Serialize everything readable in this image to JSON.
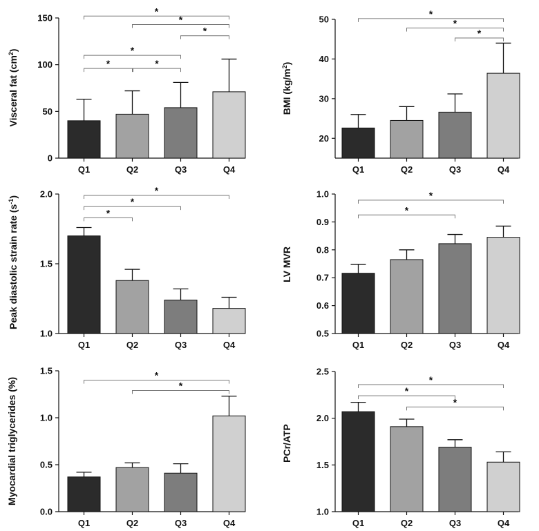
{
  "chart_data": [
    {
      "type": "bar",
      "categories": [
        "Q1",
        "Q2",
        "Q3",
        "Q4"
      ],
      "values": [
        40,
        47,
        54,
        71
      ],
      "errors": [
        23,
        25,
        27,
        35
      ],
      "ylabel_main": "Visceral fat (cm",
      "ylabel_sup": "2",
      "ylabel_end": ")",
      "ylim": [
        0,
        150
      ],
      "yticks": [
        "0",
        "50",
        "100",
        "150"
      ],
      "bar_colors": [
        "#2b2b2b",
        "#a2a2a2",
        "#7d7d7d",
        "#d0d0d0"
      ],
      "brackets": [
        {
          "from": 0,
          "to": 3,
          "y": 152,
          "label": "*"
        },
        {
          "from": 1,
          "to": 3,
          "y": 143,
          "label": "*"
        },
        {
          "from": 2,
          "to": 3,
          "y": 131,
          "label": "*"
        },
        {
          "from": 0,
          "to": 2,
          "y": 110,
          "label": "*"
        },
        {
          "from": 0,
          "to": 1,
          "y": 96,
          "label": "*"
        },
        {
          "from": 1,
          "to": 2,
          "y": 96,
          "label": "*"
        }
      ]
    },
    {
      "type": "bar",
      "categories": [
        "Q1",
        "Q2",
        "Q3",
        "Q4"
      ],
      "values": [
        22.6,
        24.5,
        26.6,
        36.4
      ],
      "errors": [
        3.4,
        3.5,
        4.6,
        7.6
      ],
      "ylabel_main": "BMI (kg/m",
      "ylabel_sup": "2",
      "ylabel_end": ")",
      "ylim": [
        15,
        50
      ],
      "yticks": [
        "20",
        "30",
        "40",
        "50"
      ],
      "bar_colors": [
        "#2b2b2b",
        "#a2a2a2",
        "#7d7d7d",
        "#d0d0d0"
      ],
      "brackets": [
        {
          "from": 0,
          "to": 3,
          "y": 50.2,
          "label": "*"
        },
        {
          "from": 1,
          "to": 3,
          "y": 47.8,
          "label": "*"
        },
        {
          "from": 2,
          "to": 3,
          "y": 45.3,
          "label": "*"
        }
      ]
    },
    {
      "type": "bar",
      "categories": [
        "Q1",
        "Q2",
        "Q3",
        "Q4"
      ],
      "values": [
        1.7,
        1.38,
        1.24,
        1.18
      ],
      "errors": [
        0.06,
        0.08,
        0.08,
        0.08
      ],
      "ylabel_main": "Peak diastolic strain rate (s",
      "ylabel_sup": "-1",
      "ylabel_end": ")",
      "ylim": [
        1.0,
        2.0
      ],
      "yticks": [
        "1.0",
        "1.5",
        "2.0"
      ],
      "bar_colors": [
        "#2b2b2b",
        "#a2a2a2",
        "#7d7d7d",
        "#d0d0d0"
      ],
      "brackets": [
        {
          "from": 0,
          "to": 3,
          "y": 1.99,
          "label": "*"
        },
        {
          "from": 0,
          "to": 2,
          "y": 1.91,
          "label": "*"
        },
        {
          "from": 0,
          "to": 1,
          "y": 1.83,
          "label": "*"
        }
      ]
    },
    {
      "type": "bar",
      "categories": [
        "Q1",
        "Q2",
        "Q3",
        "Q4"
      ],
      "values": [
        0.716,
        0.765,
        0.822,
        0.845
      ],
      "errors": [
        0.032,
        0.035,
        0.033,
        0.04
      ],
      "ylabel_main": "LV MVR",
      "ylabel_sup": "",
      "ylabel_end": "",
      "ylim": [
        0.5,
        1.0
      ],
      "yticks": [
        "0.5",
        "0.6",
        "0.7",
        "0.8",
        "0.9",
        "1.0"
      ],
      "bar_colors": [
        "#2b2b2b",
        "#a2a2a2",
        "#7d7d7d",
        "#d0d0d0"
      ],
      "brackets": [
        {
          "from": 0,
          "to": 3,
          "y": 0.978,
          "label": "*"
        },
        {
          "from": 0,
          "to": 2,
          "y": 0.925,
          "label": "*"
        }
      ]
    },
    {
      "type": "bar",
      "categories": [
        "Q1",
        "Q2",
        "Q3",
        "Q4"
      ],
      "values": [
        0.37,
        0.47,
        0.41,
        1.02
      ],
      "errors": [
        0.05,
        0.05,
        0.1,
        0.21
      ],
      "ylabel_main": "Myocardial triglycerides (%)",
      "ylabel_sup": "",
      "ylabel_end": "",
      "ylim": [
        0.0,
        1.5
      ],
      "yticks": [
        "0.0",
        "0.5",
        "1.0",
        "1.5"
      ],
      "bar_colors": [
        "#2b2b2b",
        "#a2a2a2",
        "#7d7d7d",
        "#d0d0d0"
      ],
      "brackets": [
        {
          "from": 0,
          "to": 3,
          "y": 1.4,
          "label": "*"
        },
        {
          "from": 1,
          "to": 3,
          "y": 1.29,
          "label": "*"
        }
      ]
    },
    {
      "type": "bar",
      "categories": [
        "Q1",
        "Q2",
        "Q3",
        "Q4"
      ],
      "values": [
        2.07,
        1.91,
        1.69,
        1.53
      ],
      "errors": [
        0.1,
        0.08,
        0.08,
        0.11
      ],
      "ylabel_main": "PCr/ATP",
      "ylabel_sup": "",
      "ylabel_end": "",
      "ylim": [
        1.0,
        2.5
      ],
      "yticks": [
        "1.0",
        "1.5",
        "2.0",
        "2.5"
      ],
      "bar_colors": [
        "#2b2b2b",
        "#a2a2a2",
        "#7d7d7d",
        "#d0d0d0"
      ],
      "brackets": [
        {
          "from": 0,
          "to": 3,
          "y": 2.36,
          "label": "*"
        },
        {
          "from": 0,
          "to": 2,
          "y": 2.24,
          "label": "*"
        },
        {
          "from": 1,
          "to": 3,
          "y": 2.12,
          "label": "*"
        }
      ]
    }
  ]
}
